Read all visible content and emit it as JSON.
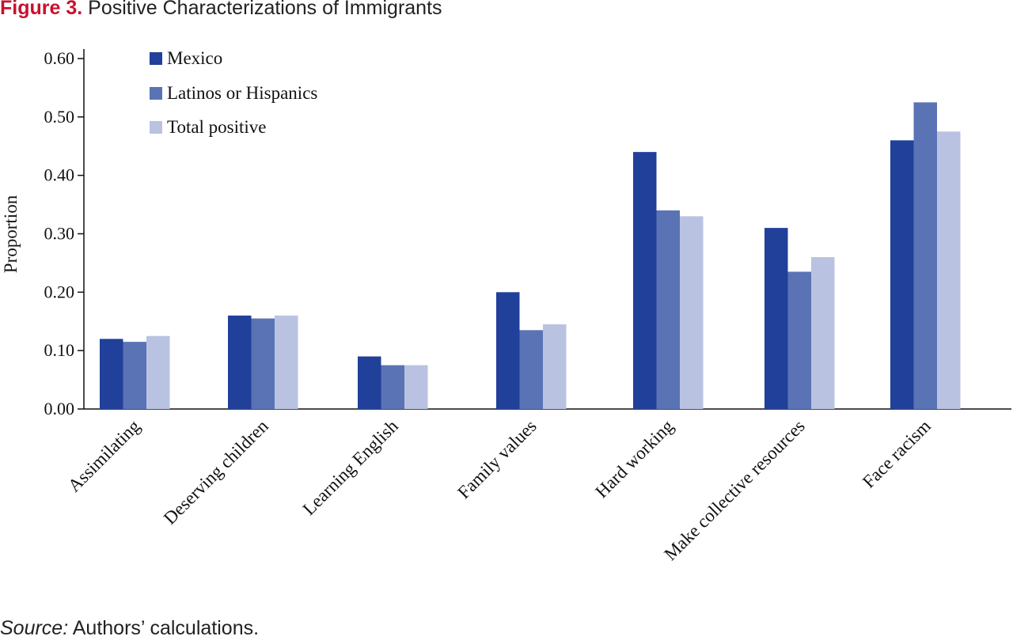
{
  "figure": {
    "label": "Figure 3.",
    "title": "Positive Characterizations of Immigrants"
  },
  "source": {
    "label": "Source:",
    "text": " Authors’ calculations."
  },
  "colors": {
    "mexico": "#21409a",
    "latinos": "#5a73b5",
    "total": "#b9c3e1",
    "axis": "#111111"
  },
  "chart_data": {
    "type": "bar",
    "title": "Positive Characterizations of Immigrants",
    "xlabel": "",
    "ylabel": "Proportion",
    "ylim": [
      0,
      0.6
    ],
    "yticks": [
      "0.00",
      "0.10",
      "0.20",
      "0.30",
      "0.40",
      "0.50",
      "0.60"
    ],
    "grid": false,
    "legend_position": "top-left",
    "categories": [
      "Assimilating",
      "Deserving children",
      "Learning English",
      "Family values",
      "Hard working",
      "Make collective resources",
      "Face racism"
    ],
    "series": [
      {
        "name": "Mexico",
        "values": [
          0.12,
          0.16,
          0.09,
          0.2,
          0.44,
          0.31,
          0.46
        ]
      },
      {
        "name": "Latinos or Hispanics",
        "values": [
          0.115,
          0.155,
          0.075,
          0.135,
          0.34,
          0.235,
          0.525
        ]
      },
      {
        "name": "Total positive",
        "values": [
          0.125,
          0.16,
          0.075,
          0.145,
          0.33,
          0.26,
          0.475
        ]
      }
    ]
  }
}
